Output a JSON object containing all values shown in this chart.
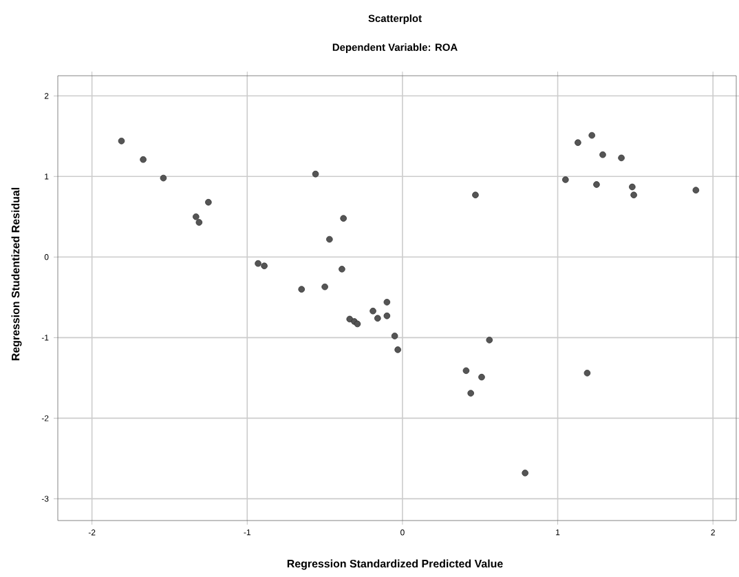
{
  "chart_data": {
    "type": "scatter",
    "title": "Scatterplot",
    "subtitle": "Dependent Variable: ROA",
    "xlabel": "Regression Standardized Predicted Value",
    "ylabel": "Regression Studentized Residual",
    "xlim": [
      -2.22,
      2.15
    ],
    "ylim": [
      -3.27,
      2.25
    ],
    "xticks": [
      -2,
      -1,
      0,
      1,
      2
    ],
    "yticks": [
      -3,
      -2,
      -1,
      0,
      1,
      2
    ],
    "grid": true,
    "marker": "circle",
    "color": "#555555",
    "x": [
      -1.81,
      -1.67,
      -1.54,
      -1.33,
      -1.31,
      -1.25,
      -0.93,
      -0.89,
      -0.65,
      -0.56,
      -0.5,
      -0.47,
      -0.38,
      -0.39,
      -0.34,
      -0.31,
      -0.29,
      -0.19,
      -0.16,
      -0.1,
      -0.1,
      -0.05,
      -0.03,
      0.41,
      0.44,
      0.51,
      0.56,
      0.47,
      0.79,
      1.19,
      1.05,
      1.13,
      1.22,
      1.29,
      1.41,
      1.25,
      1.48,
      1.49,
      1.89
    ],
    "values": [
      1.44,
      1.21,
      0.98,
      0.5,
      0.43,
      0.68,
      -0.08,
      -0.11,
      -0.4,
      1.03,
      -0.37,
      0.22,
      0.48,
      -0.15,
      -0.77,
      -0.8,
      -0.83,
      -0.67,
      -0.76,
      -0.56,
      -0.73,
      -0.98,
      -1.15,
      -1.41,
      -1.69,
      -1.49,
      -1.03,
      0.77,
      -2.68,
      -1.44,
      0.96,
      1.42,
      1.51,
      1.27,
      1.23,
      0.9,
      0.87,
      0.77,
      0.83
    ]
  }
}
